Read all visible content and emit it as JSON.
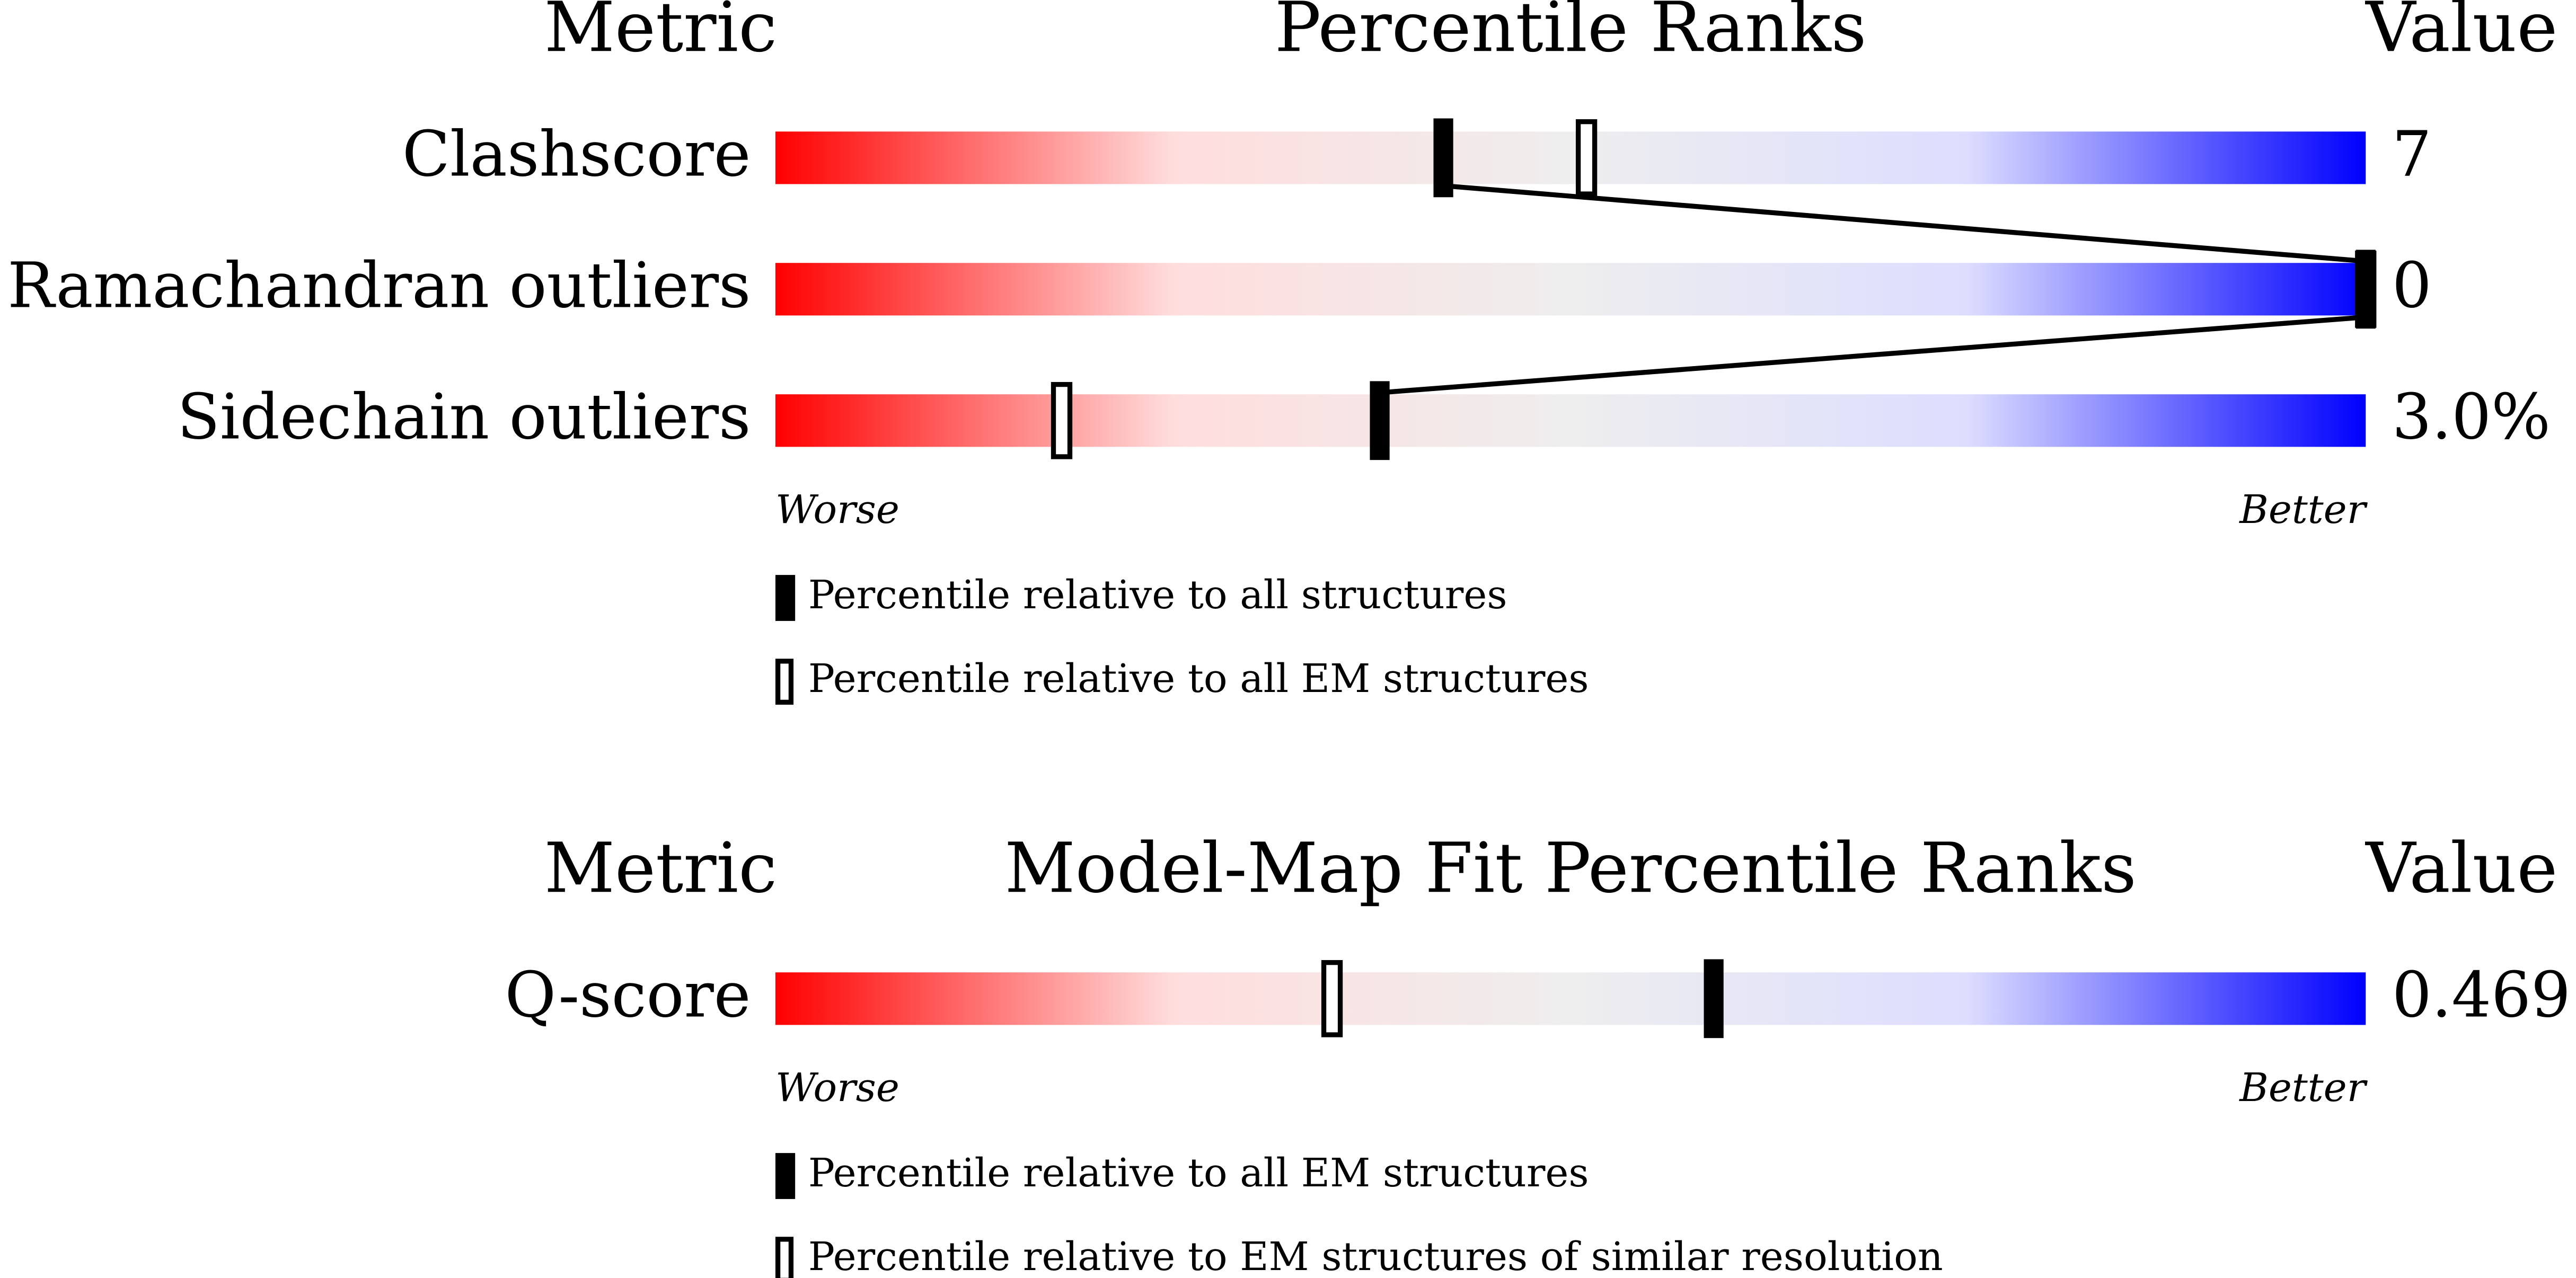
{
  "chart_data": [
    {
      "type": "percentile",
      "metric_header": "Metric",
      "title": "Percentile Ranks",
      "value_header": "Value",
      "xlim": [
        0,
        100
      ],
      "gradient": [
        "#ff0000",
        "#ffdddd",
        "#eeeeee",
        "#ddddff",
        "#0000ff"
      ],
      "categories": [
        "Clashscore",
        "Ramachandran outliers",
        "Sidechain outliers"
      ],
      "value_texts": [
        "7",
        "0",
        "3.0%"
      ],
      "series": [
        {
          "name": "Percentile relative to all structures",
          "marker": "filled",
          "color": "#000000",
          "values": [
            42,
            100,
            38
          ]
        },
        {
          "name": "Percentile relative to all EM structures",
          "marker": "hollow",
          "color": "#000000",
          "values": [
            51,
            100,
            18
          ]
        }
      ],
      "worse_label": "Worse",
      "better_label": "Better"
    },
    {
      "type": "percentile",
      "metric_header": "Metric",
      "title": "Model-Map Fit Percentile Ranks",
      "value_header": "Value",
      "xlim": [
        0,
        100
      ],
      "gradient": [
        "#ff0000",
        "#ffdddd",
        "#eeeeee",
        "#ddddff",
        "#0000ff"
      ],
      "categories": [
        "Q-score"
      ],
      "value_texts": [
        "0.469"
      ],
      "series": [
        {
          "name": "Percentile relative to all EM structures",
          "marker": "filled",
          "color": "#000000",
          "values": [
            59
          ]
        },
        {
          "name": "Percentile relative to EM structures of similar resolution",
          "marker": "hollow",
          "color": "#000000",
          "values": [
            35
          ]
        }
      ],
      "worse_label": "Worse",
      "better_label": "Better"
    }
  ]
}
